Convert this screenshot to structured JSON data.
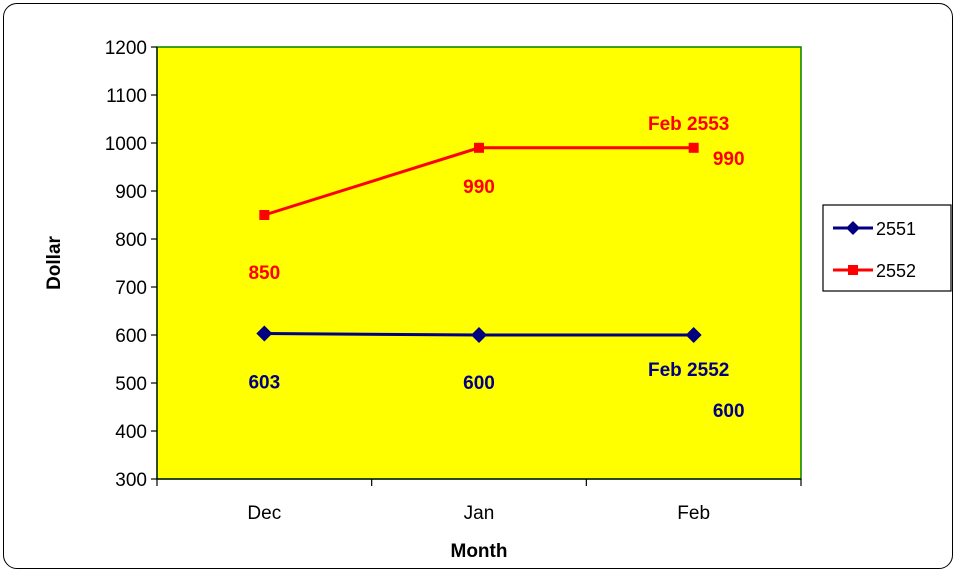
{
  "chart_data": {
    "type": "line",
    "categories": [
      "Dec",
      "Jan",
      "Feb"
    ],
    "xlabel": "Month",
    "ylabel": "Dollar",
    "ylim": [
      300,
      1200
    ],
    "yticks": [
      "1200",
      "1100",
      "1000",
      "900",
      "800",
      "700",
      "600",
      "500",
      "400",
      "300"
    ],
    "grid": false,
    "legend_position": "right",
    "plot_background": "#FFFF00",
    "plot_border": "#008000",
    "series": [
      {
        "name": "2551",
        "values": [
          603,
          600,
          600
        ],
        "color": "#000080",
        "marker": "diamond",
        "labels": [
          "603",
          "600",
          "Feb 2552"
        ],
        "extra_label": "600"
      },
      {
        "name": "2552",
        "values": [
          850,
          990,
          990
        ],
        "color": "#FF0000",
        "marker": "square",
        "labels": [
          "850",
          "990",
          "Feb 2553"
        ],
        "extra_label": "990"
      }
    ]
  }
}
